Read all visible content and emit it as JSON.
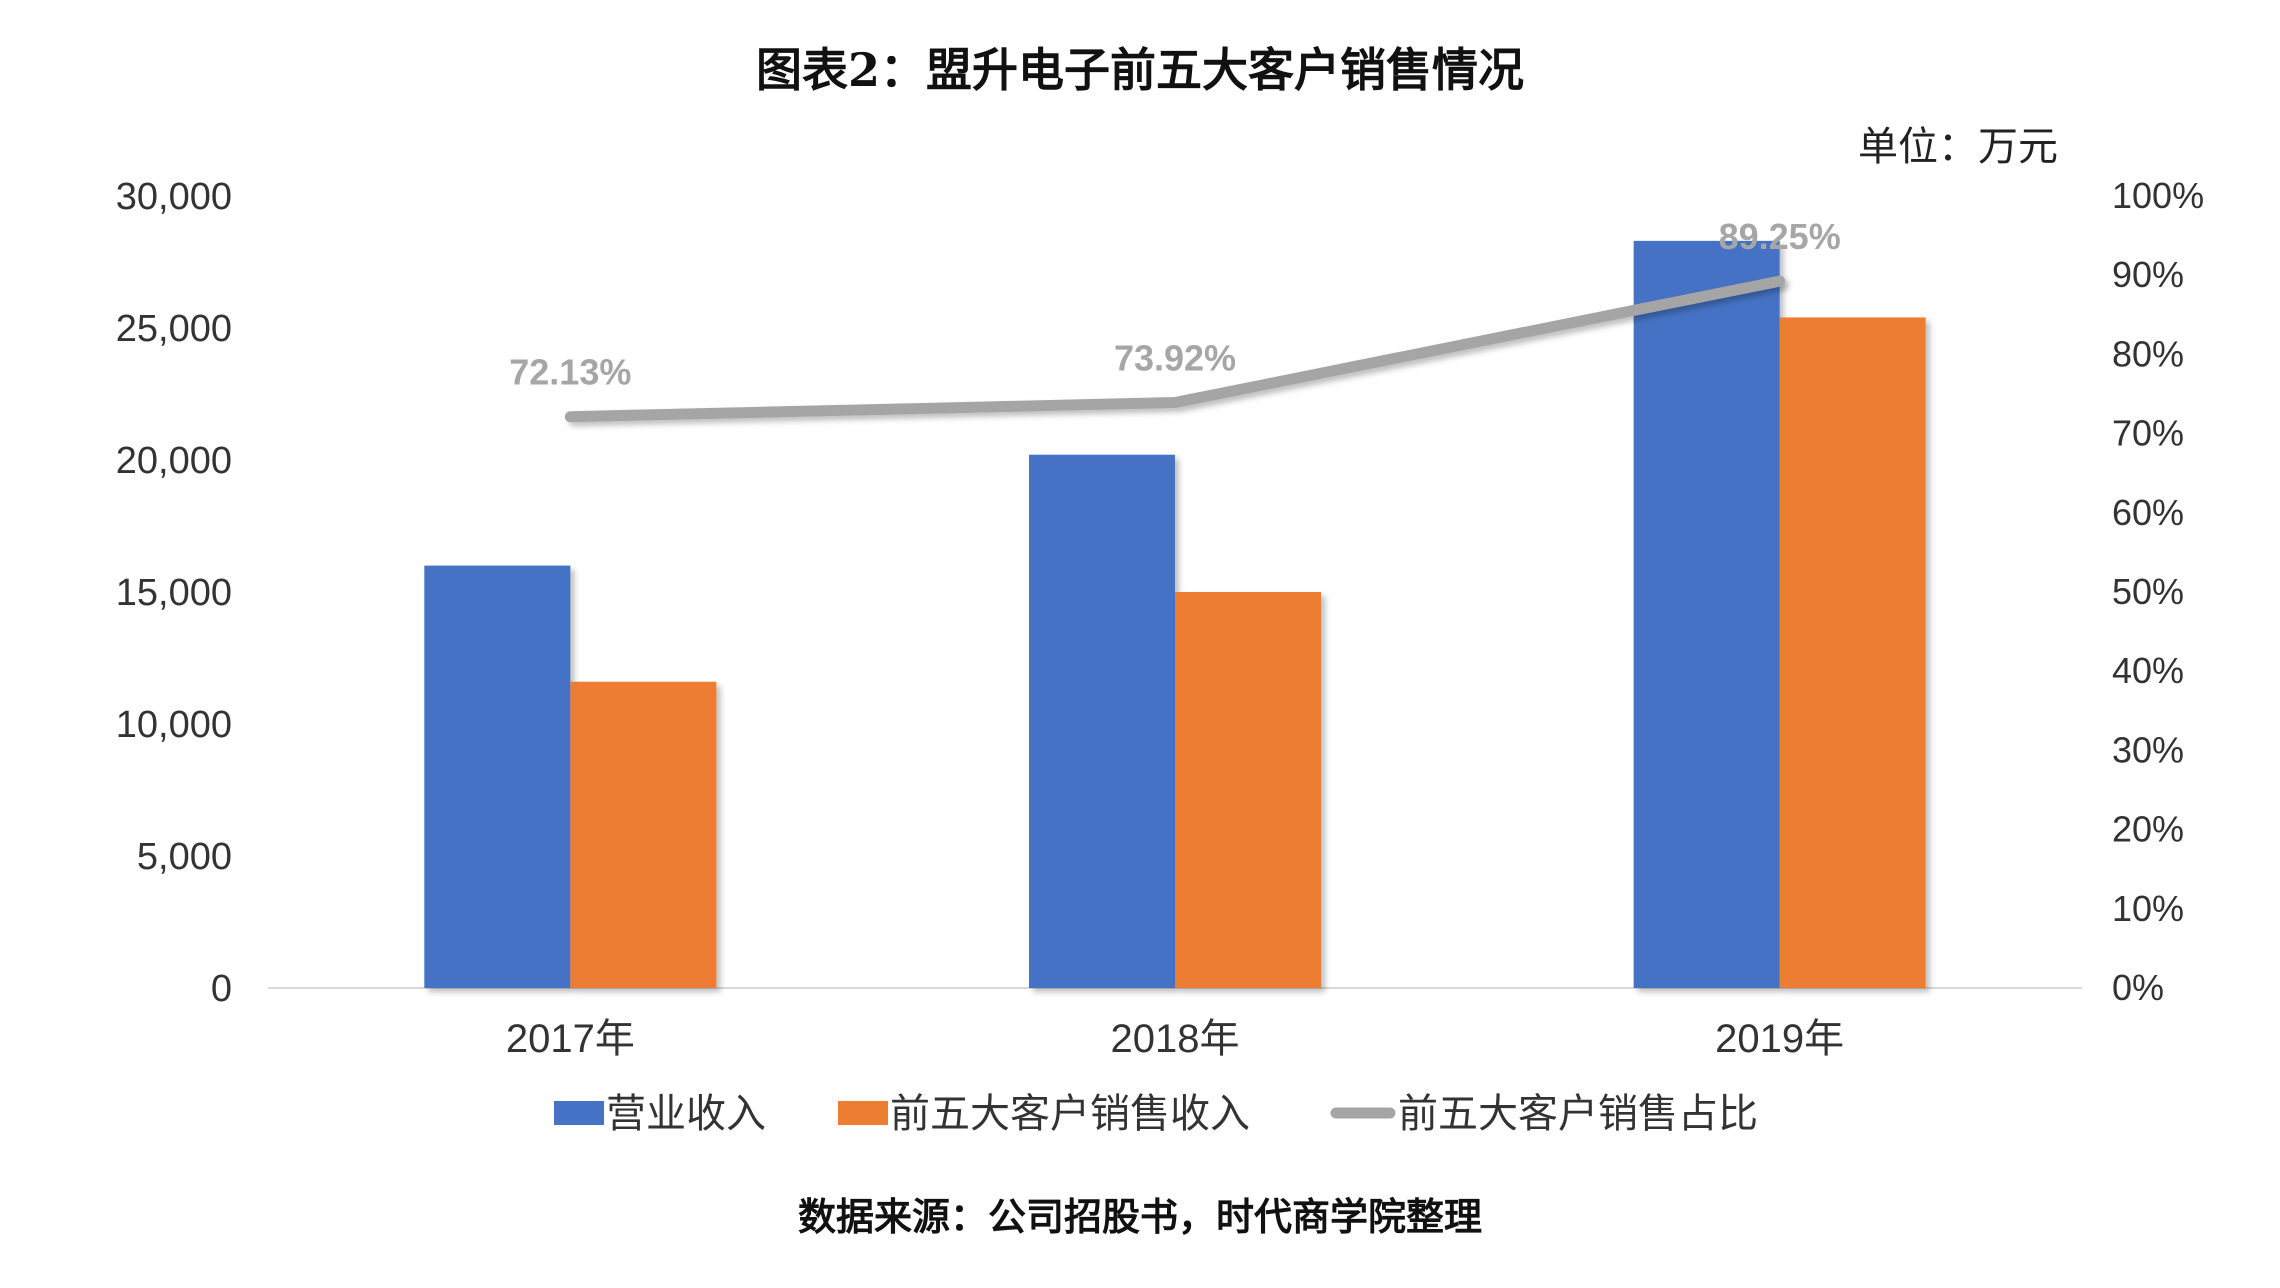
{
  "chart_data": {
    "type": "bar",
    "title": "图表2：盟升电子前五大客户销售情况",
    "unit_note": "单位：万元",
    "source": "数据来源：公司招股书，时代商学院整理",
    "categories": [
      "2017年",
      "2018年",
      "2019年"
    ],
    "series": [
      {
        "name": "营业收入",
        "type": "bar",
        "axis": "left",
        "color": "#4472C4",
        "values": [
          16000,
          20200,
          28300
        ]
      },
      {
        "name": "前五大客户销售收入",
        "type": "bar",
        "axis": "left",
        "color": "#ED7D31",
        "values": [
          11600,
          15000,
          25400
        ]
      },
      {
        "name": "前五大客户销售占比",
        "type": "line",
        "axis": "right",
        "color": "#A5A5A5",
        "values": [
          72.13,
          73.92,
          89.25
        ],
        "labels": [
          "72.13%",
          "73.92%",
          "89.25%"
        ]
      }
    ],
    "ylim": [
      0,
      30000
    ],
    "yticks": [
      "0",
      "5,000",
      "10,000",
      "15,000",
      "20,000",
      "25,000",
      "30,000"
    ],
    "y2lim": [
      0,
      100
    ],
    "y2ticks": [
      "0%",
      "10%",
      "20%",
      "30%",
      "40%",
      "50%",
      "60%",
      "70%",
      "80%",
      "90%",
      "100%"
    ],
    "legend_position": "bottom",
    "grid": false
  }
}
